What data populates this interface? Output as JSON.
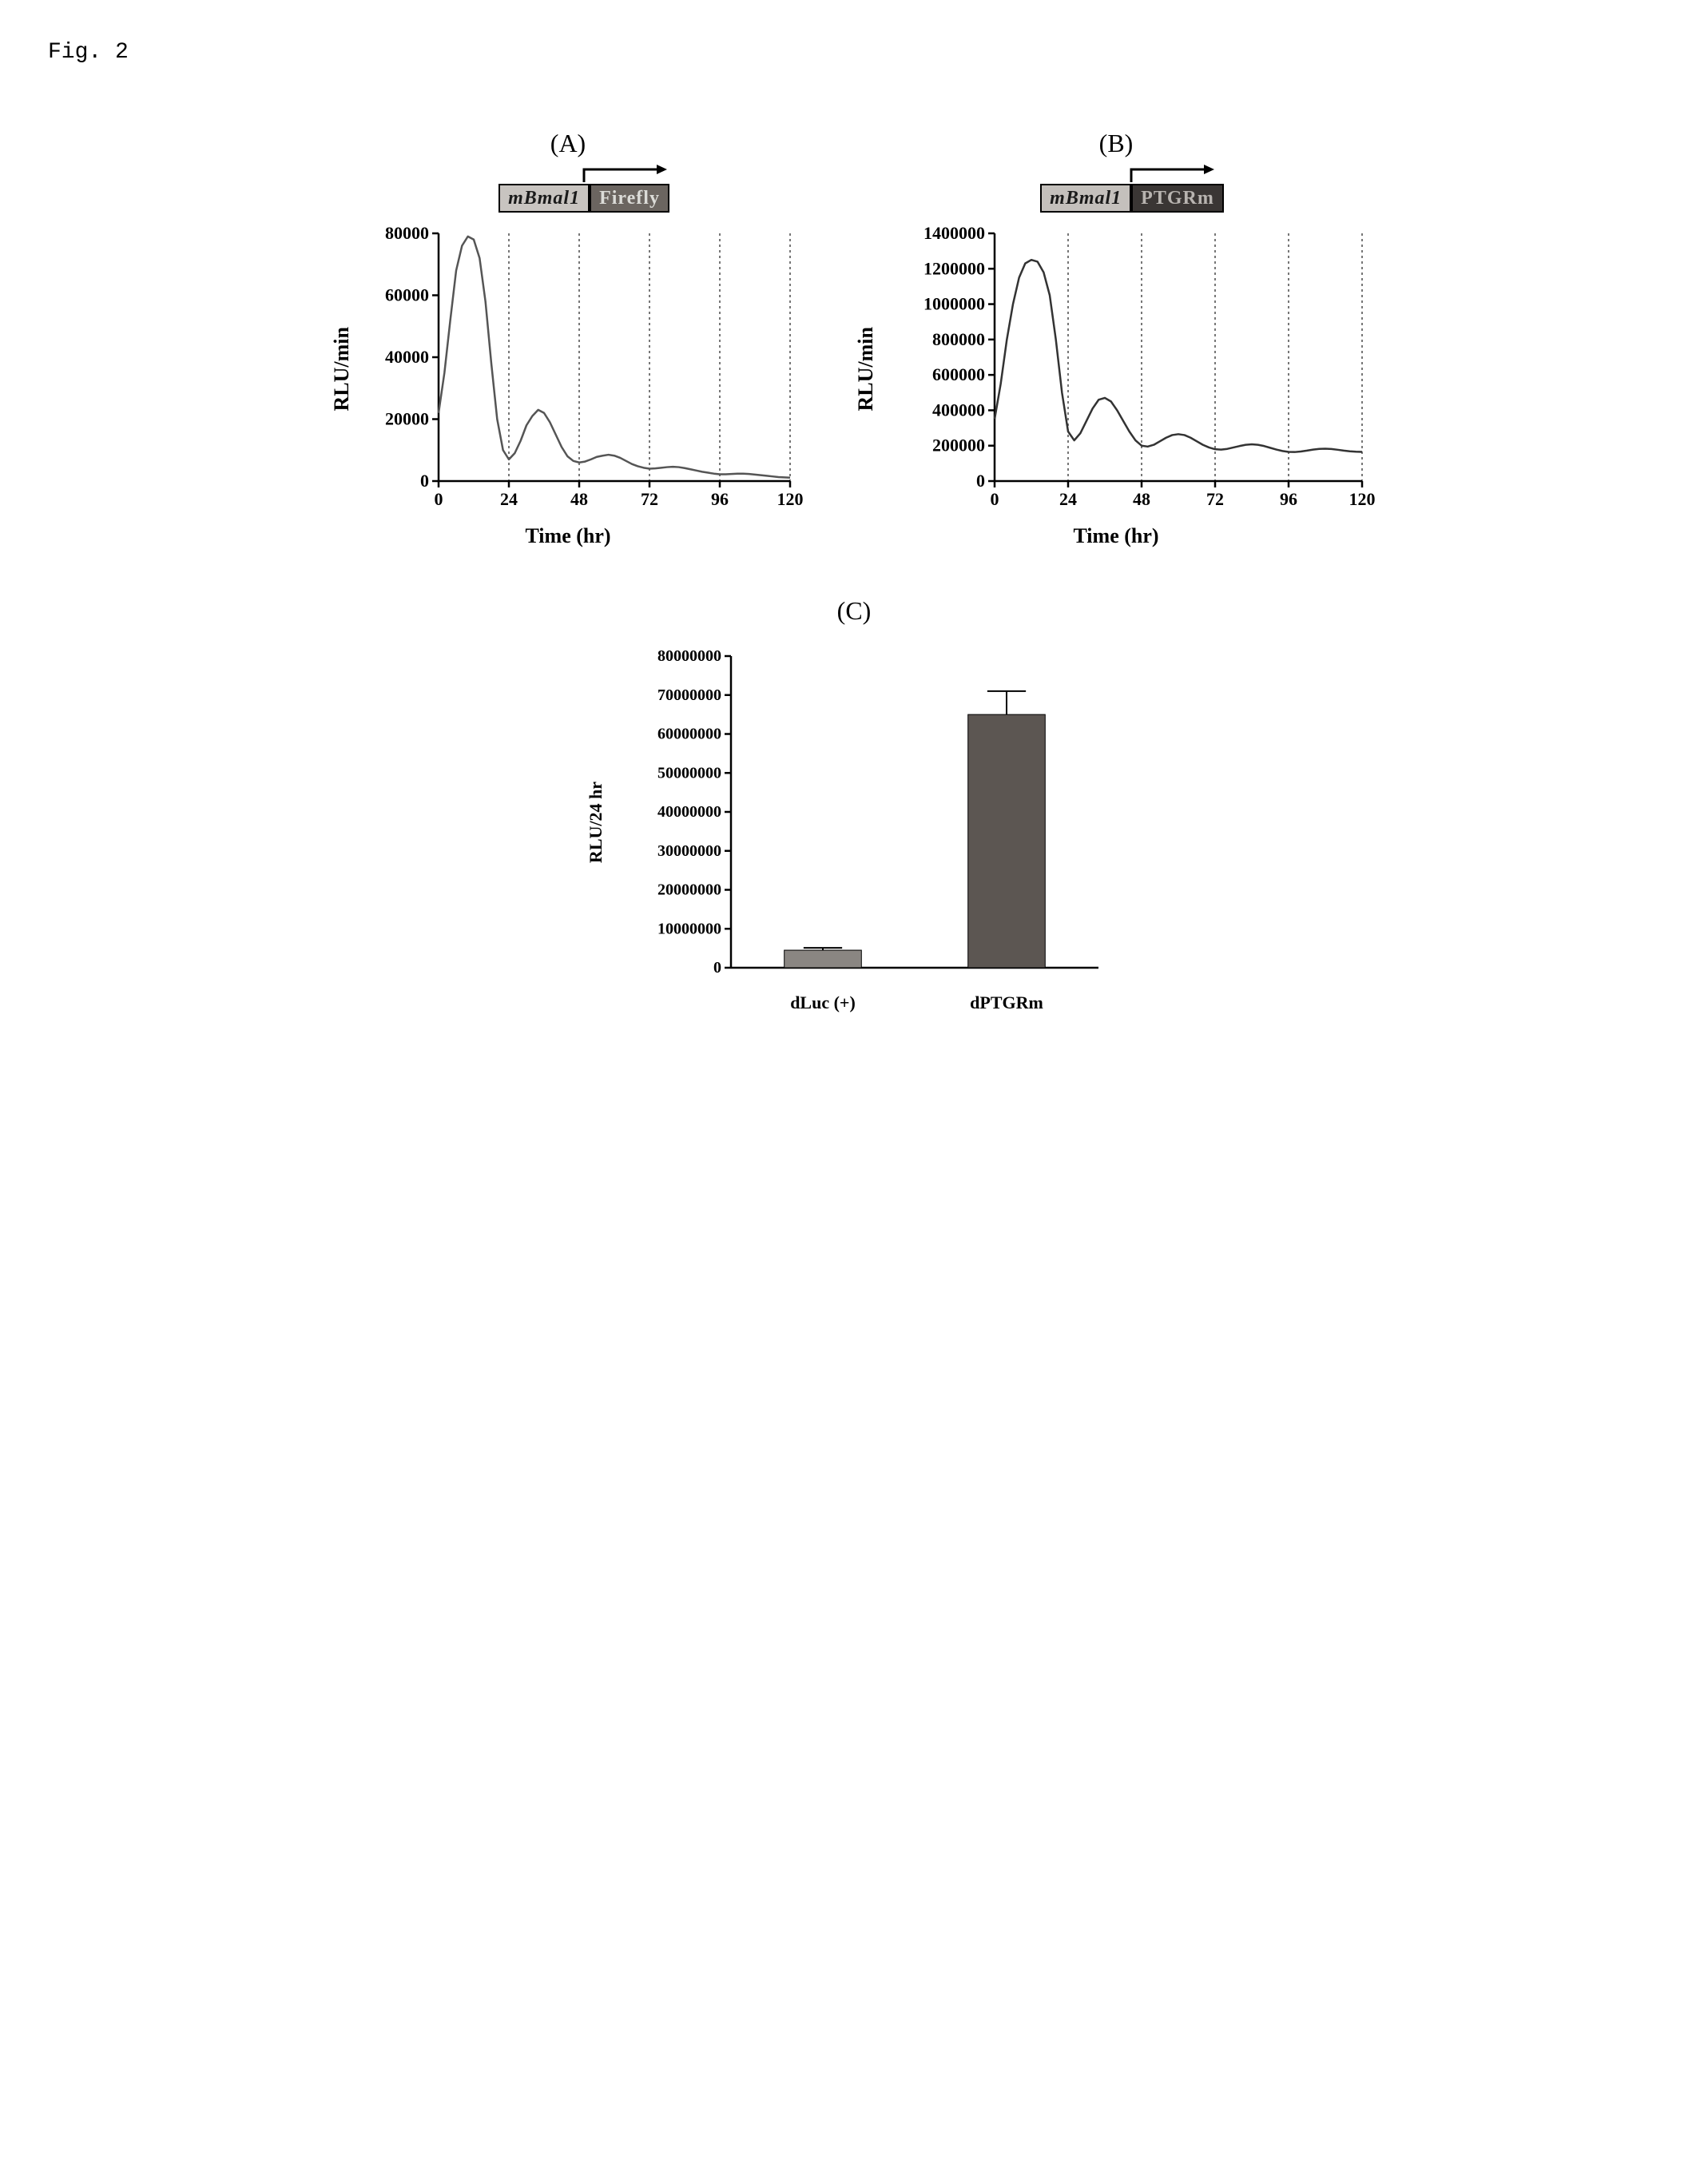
{
  "figure_label": "Fig. 2",
  "panelA": {
    "label": "(A)",
    "construct": {
      "promoter_label": "mBmal1",
      "promoter_bg": "#c8c4c0",
      "promoter_text_color": "#1a1a1a",
      "reporter_label": "Firefly",
      "reporter_bg": "#6b6560",
      "reporter_text_color": "#dcdcd8"
    },
    "chart": {
      "type": "line",
      "ylabel": "RLU/min",
      "xlabel": "Time (hr)",
      "xlim": [
        0,
        120
      ],
      "ylim": [
        0,
        80000
      ],
      "xticks": [
        0,
        24,
        48,
        72,
        96,
        120
      ],
      "yticks": [
        0,
        20000,
        40000,
        60000,
        80000
      ],
      "grid_x": [
        24,
        48,
        72,
        96,
        120
      ],
      "grid_color": "#4a4a4a",
      "grid_dash": "3,4",
      "line_color": "#555555",
      "line_width": 2.5,
      "axis_color": "#000000",
      "axis_width": 2.5,
      "tick_font_size": 22,
      "label_font_size": 26,
      "data": [
        [
          0,
          22000
        ],
        [
          2,
          35000
        ],
        [
          4,
          52000
        ],
        [
          6,
          68000
        ],
        [
          8,
          76000
        ],
        [
          10,
          79000
        ],
        [
          12,
          78000
        ],
        [
          14,
          72000
        ],
        [
          16,
          58000
        ],
        [
          18,
          38000
        ],
        [
          20,
          20000
        ],
        [
          22,
          10000
        ],
        [
          24,
          7000
        ],
        [
          26,
          9000
        ],
        [
          28,
          13000
        ],
        [
          30,
          18000
        ],
        [
          32,
          21000
        ],
        [
          34,
          23000
        ],
        [
          36,
          22000
        ],
        [
          38,
          19000
        ],
        [
          40,
          15000
        ],
        [
          42,
          11000
        ],
        [
          44,
          8000
        ],
        [
          46,
          6500
        ],
        [
          48,
          6000
        ],
        [
          50,
          6300
        ],
        [
          52,
          7000
        ],
        [
          54,
          7800
        ],
        [
          56,
          8200
        ],
        [
          58,
          8500
        ],
        [
          60,
          8200
        ],
        [
          62,
          7500
        ],
        [
          64,
          6500
        ],
        [
          66,
          5500
        ],
        [
          68,
          4800
        ],
        [
          70,
          4300
        ],
        [
          72,
          4000
        ],
        [
          74,
          4100
        ],
        [
          76,
          4300
        ],
        [
          78,
          4500
        ],
        [
          80,
          4600
        ],
        [
          82,
          4500
        ],
        [
          84,
          4200
        ],
        [
          86,
          3800
        ],
        [
          88,
          3400
        ],
        [
          90,
          3000
        ],
        [
          92,
          2700
        ],
        [
          94,
          2400
        ],
        [
          96,
          2200
        ],
        [
          98,
          2200
        ],
        [
          100,
          2300
        ],
        [
          102,
          2400
        ],
        [
          104,
          2400
        ],
        [
          106,
          2300
        ],
        [
          108,
          2100
        ],
        [
          110,
          1900
        ],
        [
          112,
          1700
        ],
        [
          114,
          1500
        ],
        [
          116,
          1300
        ],
        [
          118,
          1200
        ],
        [
          120,
          1100
        ]
      ]
    }
  },
  "panelB": {
    "label": "(B)",
    "construct": {
      "promoter_label": "mBmal1",
      "promoter_bg": "#c4c0bc",
      "promoter_text_color": "#1a1a1a",
      "reporter_label": "PTGRm",
      "reporter_bg": "#3a3634",
      "reporter_text_color": "#b8b4b0"
    },
    "chart": {
      "type": "line",
      "ylabel": "RLU/min",
      "xlabel": "Time (hr)",
      "xlim": [
        0,
        120
      ],
      "ylim": [
        0,
        1400000
      ],
      "xticks": [
        0,
        24,
        48,
        72,
        96,
        120
      ],
      "yticks": [
        0,
        200000,
        400000,
        600000,
        800000,
        1000000,
        1200000,
        1400000
      ],
      "grid_x": [
        24,
        48,
        72,
        96,
        120
      ],
      "grid_color": "#4a4a4a",
      "grid_dash": "3,4",
      "line_color": "#333333",
      "line_width": 2.5,
      "axis_color": "#000000",
      "axis_width": 2.5,
      "tick_font_size": 22,
      "label_font_size": 26,
      "data": [
        [
          0,
          350000
        ],
        [
          2,
          550000
        ],
        [
          4,
          800000
        ],
        [
          6,
          1000000
        ],
        [
          8,
          1150000
        ],
        [
          10,
          1230000
        ],
        [
          12,
          1250000
        ],
        [
          14,
          1240000
        ],
        [
          16,
          1180000
        ],
        [
          18,
          1050000
        ],
        [
          20,
          800000
        ],
        [
          22,
          500000
        ],
        [
          24,
          280000
        ],
        [
          26,
          230000
        ],
        [
          28,
          270000
        ],
        [
          30,
          340000
        ],
        [
          32,
          410000
        ],
        [
          34,
          460000
        ],
        [
          36,
          470000
        ],
        [
          38,
          450000
        ],
        [
          40,
          400000
        ],
        [
          42,
          340000
        ],
        [
          44,
          280000
        ],
        [
          46,
          230000
        ],
        [
          48,
          200000
        ],
        [
          50,
          195000
        ],
        [
          52,
          205000
        ],
        [
          54,
          225000
        ],
        [
          56,
          245000
        ],
        [
          58,
          260000
        ],
        [
          60,
          265000
        ],
        [
          62,
          260000
        ],
        [
          64,
          245000
        ],
        [
          66,
          225000
        ],
        [
          68,
          205000
        ],
        [
          70,
          190000
        ],
        [
          72,
          180000
        ],
        [
          74,
          178000
        ],
        [
          76,
          182000
        ],
        [
          78,
          190000
        ],
        [
          80,
          198000
        ],
        [
          82,
          205000
        ],
        [
          84,
          208000
        ],
        [
          86,
          205000
        ],
        [
          88,
          198000
        ],
        [
          90,
          188000
        ],
        [
          92,
          178000
        ],
        [
          94,
          170000
        ],
        [
          96,
          165000
        ],
        [
          98,
          164000
        ],
        [
          100,
          167000
        ],
        [
          102,
          172000
        ],
        [
          104,
          178000
        ],
        [
          106,
          182000
        ],
        [
          108,
          183000
        ],
        [
          110,
          181000
        ],
        [
          112,
          177000
        ],
        [
          114,
          172000
        ],
        [
          116,
          168000
        ],
        [
          118,
          166000
        ],
        [
          120,
          165000
        ]
      ]
    }
  },
  "panelC": {
    "label": "(C)",
    "chart": {
      "type": "bar",
      "ylabel": "RLU/24 hr",
      "ylim": [
        0,
        80000000
      ],
      "yticks": [
        0,
        10000000,
        20000000,
        30000000,
        40000000,
        50000000,
        60000000,
        70000000,
        80000000
      ],
      "categories": [
        "dLuc (+)",
        "dPTGRm"
      ],
      "values": [
        4500000,
        65000000
      ],
      "errors": [
        600000,
        6000000
      ],
      "bar_colors": [
        "#8a8682",
        "#5c5652"
      ],
      "bar_width": 0.42,
      "axis_color": "#000000",
      "axis_width": 2.5,
      "tick_font_size": 20,
      "label_font_size": 22,
      "error_color": "#000000",
      "error_width": 2
    }
  }
}
